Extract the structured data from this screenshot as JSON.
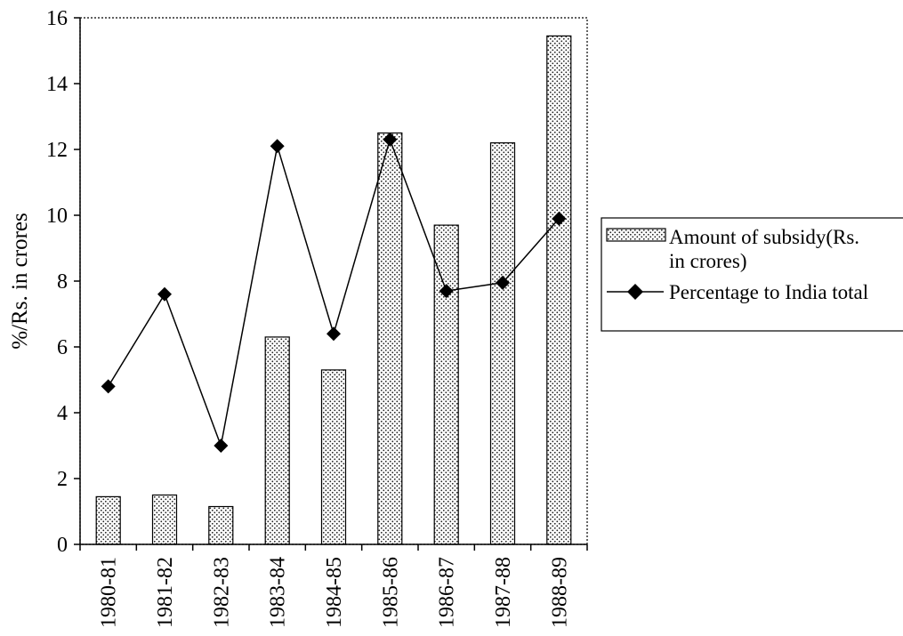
{
  "chart_data": {
    "type": "bar",
    "categories": [
      "1980-81",
      "1981-82",
      "1982-83",
      "1983-84",
      "1984-85",
      "1985-86",
      "1986-87",
      "1987-88",
      "1988-89"
    ],
    "series": [
      {
        "name": "Amount of subsidy(Rs. in crores)",
        "legend_lines": [
          "Amount of subsidy(Rs.",
          "in crores)"
        ],
        "kind": "bar",
        "values": [
          1.45,
          1.5,
          1.15,
          6.3,
          5.3,
          12.5,
          9.7,
          12.2,
          15.45
        ]
      },
      {
        "name": "Percentage to India total",
        "legend_lines": [
          "Percentage to India total"
        ],
        "kind": "line",
        "marker": "diamond",
        "values": [
          4.8,
          7.6,
          3.0,
          12.1,
          6.4,
          12.3,
          7.7,
          7.95,
          9.9
        ]
      }
    ],
    "title": "",
    "xlabel": "",
    "ylabel": "%/Rs. in crores",
    "ylim": [
      0,
      16
    ],
    "yticks": [
      0,
      2,
      4,
      6,
      8,
      10,
      12,
      14,
      16
    ],
    "grid": false,
    "legend_position": "right"
  }
}
